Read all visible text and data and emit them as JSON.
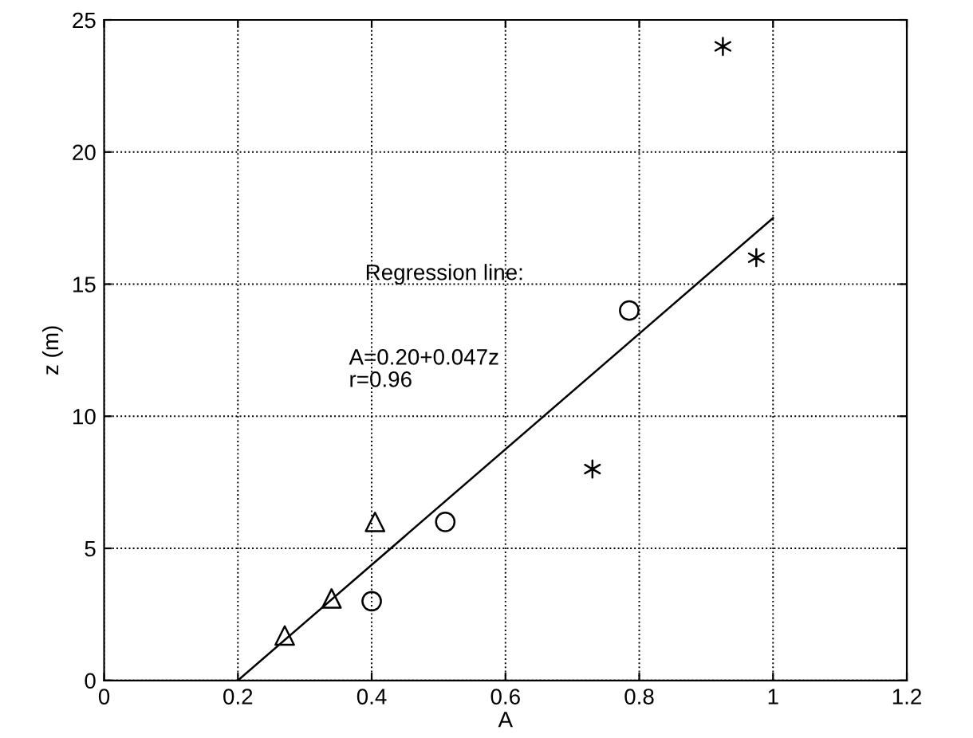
{
  "chart_data": {
    "type": "scatter",
    "xlabel": "A",
    "ylabel": "z (m)",
    "xlim": [
      0,
      1.2
    ],
    "ylim": [
      0,
      25
    ],
    "xticks": [
      0,
      0.2,
      0.4,
      0.6,
      0.8,
      1,
      1.2
    ],
    "yticks": [
      0,
      5,
      10,
      15,
      20,
      25
    ],
    "grid": true,
    "legend": false,
    "series": [
      {
        "marker": "triangle",
        "color": "#000000",
        "x": [
          0.27,
          0.34,
          0.405
        ],
        "values": [
          1.7,
          3.1,
          6.0
        ]
      },
      {
        "marker": "circle",
        "color": "#000000",
        "x": [
          0.4,
          0.51,
          0.785
        ],
        "values": [
          3.0,
          6.0,
          14.0
        ]
      },
      {
        "marker": "cross",
        "color": "#000000",
        "x": [
          0.73,
          0.925,
          0.975
        ],
        "values": [
          8.0,
          24.0,
          16.0
        ]
      },
      {
        "type": "line",
        "marker": "none",
        "line_style": "solid",
        "color": "#000000",
        "x": [
          0.2,
          1.0
        ],
        "values": [
          0,
          17.5
        ]
      }
    ],
    "annotations": [
      "Regression line:",
      "A=0.20+0.047z\nr=0.96"
    ]
  }
}
